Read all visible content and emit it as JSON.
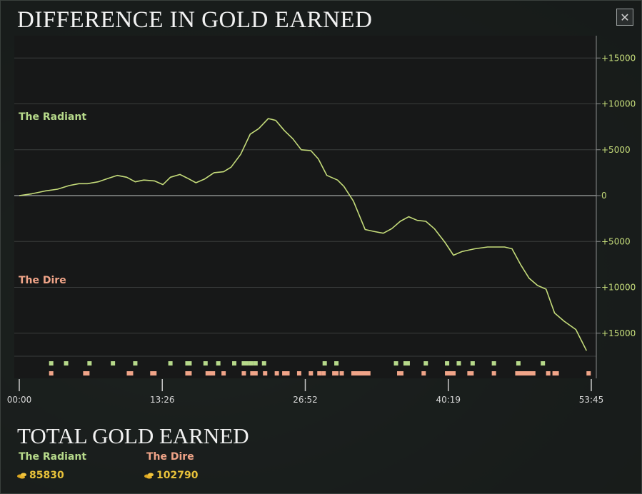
{
  "window": {
    "title": "DIFFERENCE IN GOLD EARNED",
    "close_icon_glyph": "✕"
  },
  "chart_data": {
    "type": "line",
    "title": "DIFFERENCE IN GOLD EARNED",
    "x_ticks": [
      "00:00",
      "13:26",
      "26:52",
      "40:19",
      "53:45"
    ],
    "x_range_minutes": [
      0,
      53.75
    ],
    "y_ticks": [
      "+15000",
      "+10000",
      "+5000",
      "0",
      "+5000",
      "+10000",
      "+15000"
    ],
    "ylim": [
      -17500,
      17500
    ],
    "grid": true,
    "positive_label": "The Radiant",
    "negative_label": "The Dire",
    "line_color": "#c5dc7a",
    "series": [
      {
        "values": [
          [
            0,
            0
          ],
          [
            1.2,
            200
          ],
          [
            2.4,
            500
          ],
          [
            3.6,
            700
          ],
          [
            4.7,
            1100
          ],
          [
            5.6,
            1300
          ],
          [
            6.4,
            1300
          ],
          [
            7.4,
            1500
          ],
          [
            8.4,
            1900
          ],
          [
            9.2,
            2200
          ],
          [
            10.1,
            2000
          ],
          [
            10.9,
            1500
          ],
          [
            11.7,
            1700
          ],
          [
            12.7,
            1600
          ],
          [
            13.5,
            1200
          ],
          [
            14.2,
            2000
          ],
          [
            15.1,
            2300
          ],
          [
            15.8,
            1900
          ],
          [
            16.6,
            1400
          ],
          [
            17.4,
            1800
          ],
          [
            18.3,
            2500
          ],
          [
            19.2,
            2600
          ],
          [
            19.9,
            3100
          ],
          [
            20.8,
            4500
          ],
          [
            21.7,
            6700
          ],
          [
            22.5,
            7300
          ],
          [
            23.4,
            8400
          ],
          [
            24.1,
            8200
          ],
          [
            24.9,
            7100
          ],
          [
            25.7,
            6200
          ],
          [
            26.5,
            5000
          ],
          [
            27.4,
            4900
          ],
          [
            28.1,
            4000
          ],
          [
            28.9,
            2200
          ],
          [
            29.9,
            1700
          ],
          [
            30.5,
            1000
          ],
          [
            31.4,
            -600
          ],
          [
            32.5,
            -3700
          ],
          [
            33.3,
            -3900
          ],
          [
            34.2,
            -4100
          ],
          [
            35.0,
            -3600
          ],
          [
            35.8,
            -2800
          ],
          [
            36.6,
            -2300
          ],
          [
            37.4,
            -2700
          ],
          [
            38.2,
            -2800
          ],
          [
            39.0,
            -3600
          ],
          [
            40.0,
            -5100
          ],
          [
            40.8,
            -6500
          ],
          [
            41.6,
            -6100
          ],
          [
            42.8,
            -5800
          ],
          [
            44.0,
            -5600
          ],
          [
            45.6,
            -5600
          ],
          [
            46.3,
            -5800
          ],
          [
            47.1,
            -7500
          ],
          [
            47.9,
            -9000
          ],
          [
            48.7,
            -9800
          ],
          [
            49.5,
            -10200
          ],
          [
            50.3,
            -12800
          ],
          [
            51.2,
            -13700
          ],
          [
            52.3,
            -14600
          ],
          [
            53.3,
            -16900
          ]
        ]
      }
    ],
    "event_markers": {
      "radiant_color": "#b6d98a",
      "dire_color": "#f0a488",
      "radiant_minutes": [
        3.0,
        4.4,
        6.6,
        8.8,
        10.9,
        14.2,
        15.8,
        16.0,
        17.5,
        18.7,
        20.2,
        21.1,
        21.4,
        21.8,
        22.2,
        23.0,
        28.7,
        29.8,
        35.4,
        36.3,
        36.5,
        38.2,
        40.2,
        41.3,
        42.6,
        44.6,
        46.9,
        49.2
      ],
      "dire_minutes": [
        3.0,
        6.2,
        6.4,
        10.3,
        10.5,
        12.5,
        12.7,
        15.8,
        16.0,
        17.7,
        18.0,
        18.2,
        19.2,
        21.1,
        21.9,
        22.2,
        23.1,
        24.2,
        24.9,
        25.2,
        26.3,
        27.4,
        28.2,
        28.6,
        29.6,
        29.8,
        30.3,
        31.4,
        31.6,
        31.8,
        32.0,
        32.2,
        32.4,
        32.6,
        32.8,
        35.7,
        35.9,
        38.0,
        40.2,
        40.4,
        40.6,
        40.8,
        42.3,
        42.5,
        44.6,
        46.8,
        47.0,
        47.3,
        47.5,
        47.8,
        48.0,
        48.3,
        49.7,
        50.3,
        50.5,
        53.5
      ]
    }
  },
  "totals": {
    "title": "TOTAL GOLD EARNED",
    "radiant": {
      "label": "The Radiant",
      "gold": "85830",
      "icon": "gold-coins-icon"
    },
    "dire": {
      "label": "The Dire",
      "gold": "102790",
      "icon": "gold-coins-icon"
    }
  },
  "colors": {
    "radiant": "#b6d98a",
    "dire": "#f0a488",
    "gold": "#e8c23a",
    "plot_bg": "#171818"
  }
}
